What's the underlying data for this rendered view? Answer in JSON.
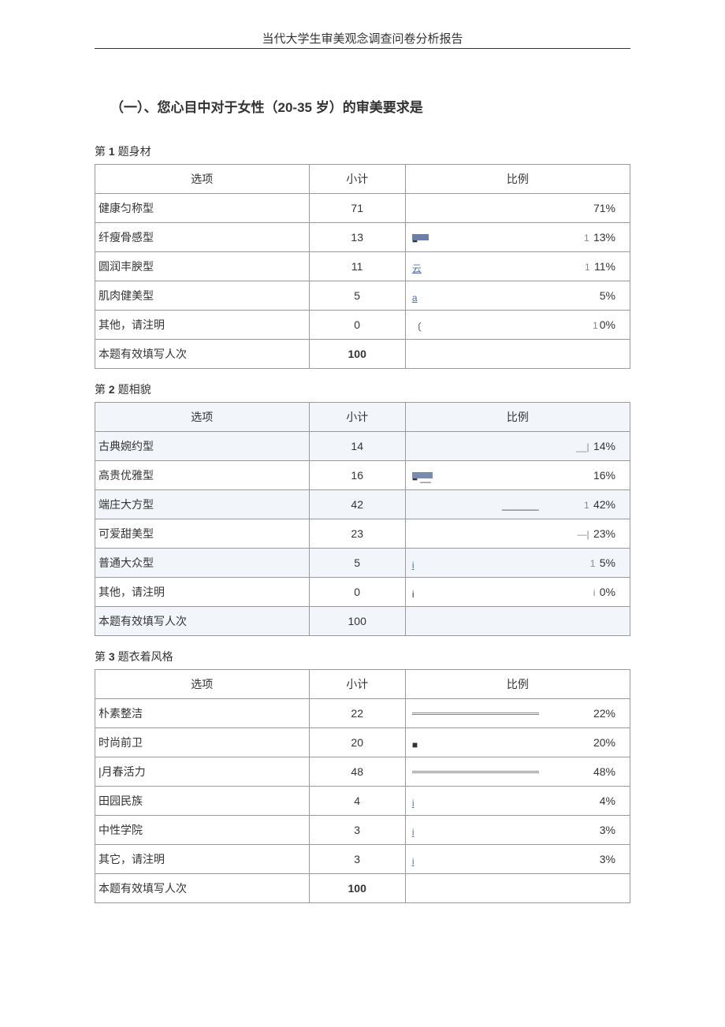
{
  "docTitle": "当代大学生审美观念调查问卷分析报告",
  "sectionTitle": "（一）、您心目中对于女性（20-35 岁）的审美要求是",
  "columns": {
    "option": "选项",
    "count": "小计",
    "ratio": "比例"
  },
  "totalLabel": "本题有效填写人次",
  "colors": {
    "barColor": "#6b7fa8",
    "borderColor": "#999999",
    "zebraBg": "#f2f5fa",
    "linkColor": "#4a6fa5"
  },
  "questions": [
    {
      "title_prefix": "第 ",
      "title_num": "1",
      "title_suffix": " 题身材",
      "rows": [
        {
          "option": "健康匀称型",
          "count": "71",
          "pct": "71%",
          "prefix": "",
          "bar": 0,
          "glyph": ""
        },
        {
          "option": "纤瘦骨感型",
          "count": "13",
          "pct": "13%",
          "prefix": "1 ",
          "bar": 13,
          "glyph": "■"
        },
        {
          "option": "圆润丰腴型",
          "count": "11",
          "pct": "11%",
          "prefix": "1 ",
          "bar": 0,
          "glyph": "云",
          "glyphClass": "link-text"
        },
        {
          "option": "肌肉健美型",
          "count": "5",
          "pct": "5%",
          "prefix": "",
          "bar": 0,
          "glyph": "a",
          "glyphClass": "link-text"
        },
        {
          "option": "其他，请注明",
          "count": "0",
          "pct": "0%",
          "prefix": "1",
          "bar": 0,
          "glyph": "〔"
        }
      ],
      "total": "100",
      "totalBold": true
    },
    {
      "title_prefix": "第 ",
      "title_num": "2",
      "title_suffix": " 题相貌",
      "zebra": true,
      "rows": [
        {
          "option": "古典婉约型",
          "count": "14",
          "pct": "14%",
          "prefix": "__| ",
          "bar": 0,
          "glyph": ""
        },
        {
          "option": "高贵优雅型",
          "count": "16",
          "pct": "16%",
          "prefix": "",
          "bar": 16,
          "glyph": "■ __"
        },
        {
          "option": "端庄大方型",
          "count": "42",
          "pct": "42%",
          "prefix": "1 ",
          "bar": 0,
          "glyph": "_______",
          "glyphPos": "right"
        },
        {
          "option": "可爱甜美型",
          "count": "23",
          "pct": "23%",
          "prefix": "—| ",
          "bar": 0,
          "glyph": ""
        },
        {
          "option": "普通大众型",
          "count": "5",
          "pct": "5%",
          "prefix": "1 ",
          "bar": 0,
          "glyph": "i",
          "glyphClass": "link-text"
        },
        {
          "option": "其他，请注明",
          "count": "0",
          "pct": "0%",
          "prefix": "i ",
          "bar": 0,
          "glyph": "i"
        }
      ],
      "total": "100",
      "totalBold": false
    },
    {
      "title_prefix": "第 ",
      "title_num": "3",
      "title_suffix": " 题衣着风格",
      "t3style": true,
      "rows": [
        {
          "option": "朴素整洁",
          "count": "22",
          "pct": "22%",
          "prefix": "",
          "bar": 100,
          "glyph": ""
        },
        {
          "option": "时尚前卫",
          "count": "20",
          "pct": "20%",
          "prefix": "",
          "bar": 0,
          "glyph": "■"
        },
        {
          "option": "|月春活力",
          "count": "48",
          "pct": "48%",
          "prefix": "",
          "bar": 100,
          "glyph": ""
        },
        {
          "option": "田园民族",
          "count": "4",
          "pct": "4%",
          "prefix": "",
          "bar": 0,
          "glyph": "i",
          "glyphClass": "link-text"
        },
        {
          "option": "中性学院",
          "count": "3",
          "pct": "3%",
          "prefix": "",
          "bar": 0,
          "glyph": "i",
          "glyphClass": "link-text"
        },
        {
          "option": "其它，请注明",
          "count": "3",
          "pct": "3%",
          "prefix": "",
          "bar": 0,
          "glyph": "i",
          "glyphClass": "link-text"
        }
      ],
      "total": "100",
      "totalBold": true
    }
  ]
}
